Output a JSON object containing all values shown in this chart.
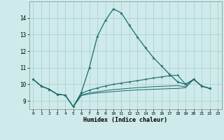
{
  "xlabel": "Humidex (Indice chaleur)",
  "xlim": [
    -0.5,
    23.5
  ],
  "ylim": [
    8.5,
    15.0
  ],
  "yticks": [
    9,
    10,
    11,
    12,
    13,
    14
  ],
  "xticks": [
    0,
    1,
    2,
    3,
    4,
    5,
    6,
    7,
    8,
    9,
    10,
    11,
    12,
    13,
    14,
    15,
    16,
    17,
    18,
    19,
    20,
    21,
    22,
    23
  ],
  "bg_color": "#ceeaea",
  "grid_color": "#a8cccc",
  "line_color": "#1a6b6b",
  "line1_x": [
    0,
    1,
    2,
    3,
    4,
    5,
    6,
    7,
    8,
    9,
    10,
    11,
    12,
    13,
    14,
    15,
    16,
    17,
    18,
    19,
    20,
    21,
    22
  ],
  "line1_y": [
    10.3,
    9.9,
    9.7,
    9.4,
    9.35,
    8.65,
    9.5,
    11.0,
    12.9,
    13.85,
    14.55,
    14.3,
    13.55,
    12.85,
    12.2,
    11.6,
    11.1,
    10.6,
    10.15,
    10.0,
    10.3,
    9.9,
    9.75
  ],
  "line2_x": [
    0,
    1,
    2,
    3,
    4,
    5,
    6,
    7,
    8,
    9,
    10,
    11,
    12,
    13,
    14,
    15,
    16,
    17,
    18,
    19,
    20,
    21,
    22
  ],
  "line2_y": [
    10.3,
    9.9,
    9.7,
    9.4,
    9.35,
    8.65,
    9.45,
    9.65,
    9.78,
    9.9,
    10.0,
    10.08,
    10.15,
    10.22,
    10.3,
    10.38,
    10.45,
    10.52,
    10.55,
    10.0,
    10.3,
    9.9,
    9.75
  ],
  "line3_x": [
    0,
    1,
    2,
    3,
    4,
    5,
    6,
    7,
    8,
    9,
    10,
    11,
    12,
    13,
    14,
    15,
    16,
    17,
    18,
    19,
    20,
    21,
    22
  ],
  "line3_y": [
    10.3,
    9.9,
    9.7,
    9.4,
    9.35,
    8.65,
    9.35,
    9.48,
    9.55,
    9.62,
    9.68,
    9.72,
    9.76,
    9.8,
    9.83,
    9.86,
    9.88,
    9.9,
    9.92,
    9.85,
    10.3,
    9.9,
    9.75
  ],
  "line4_x": [
    0,
    1,
    2,
    3,
    4,
    5,
    6,
    7,
    8,
    9,
    10,
    11,
    12,
    13,
    14,
    15,
    16,
    17,
    18,
    19,
    20,
    21,
    22
  ],
  "line4_y": [
    10.3,
    9.9,
    9.7,
    9.4,
    9.35,
    8.65,
    9.32,
    9.42,
    9.48,
    9.52,
    9.56,
    9.6,
    9.63,
    9.66,
    9.68,
    9.7,
    9.72,
    9.74,
    9.75,
    9.8,
    10.3,
    9.9,
    9.75
  ]
}
